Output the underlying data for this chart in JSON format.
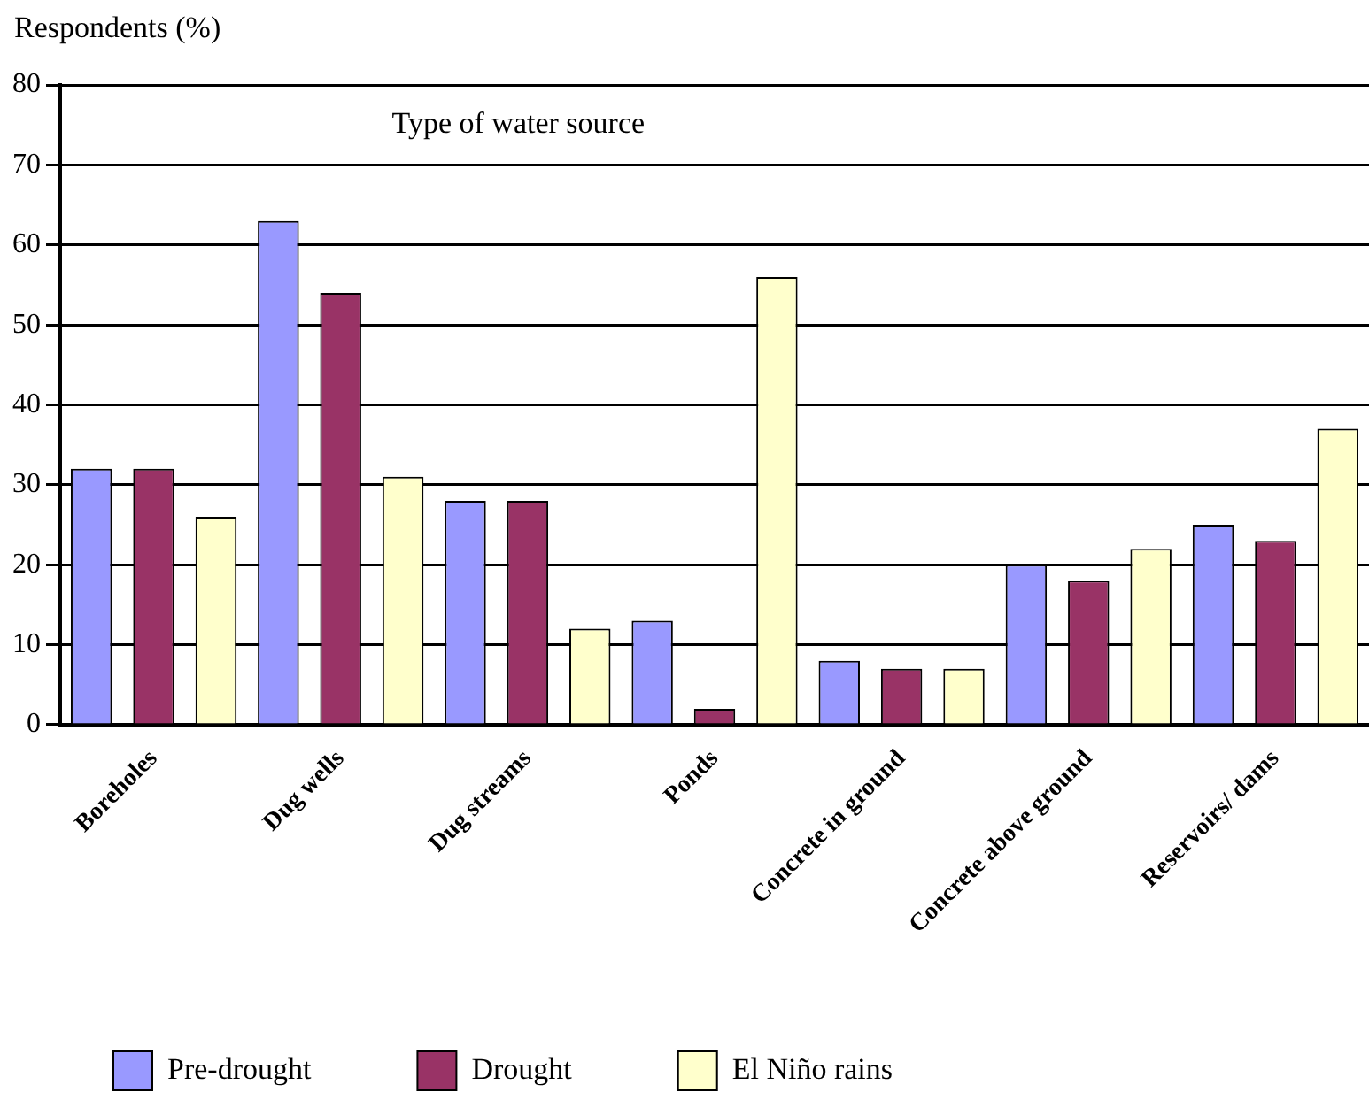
{
  "chart_data": {
    "type": "bar",
    "title": "Type of water source",
    "ylabel": "Respondents (%)",
    "categories": [
      "Boreholes",
      "Dug wells",
      "Dug streams",
      "Ponds",
      "Concrete in ground",
      "Concrete above ground",
      "Reservoirs/ dams"
    ],
    "series": [
      {
        "name": "Pre-drought",
        "color": "#9999ff",
        "values": [
          32,
          63,
          28,
          13,
          8,
          20,
          25
        ]
      },
      {
        "name": "Drought",
        "color": "#993366",
        "values": [
          32,
          54,
          28,
          2,
          7,
          18,
          23
        ]
      },
      {
        "name": "El Niño rains",
        "color": "#ffffcc",
        "values": [
          26,
          31,
          12,
          56,
          7,
          22,
          37
        ]
      }
    ],
    "ylim": [
      0,
      80
    ],
    "yticks": [
      0,
      10,
      20,
      30,
      40,
      50,
      60,
      70,
      80
    ],
    "grid": "y",
    "legend": "bottom"
  }
}
